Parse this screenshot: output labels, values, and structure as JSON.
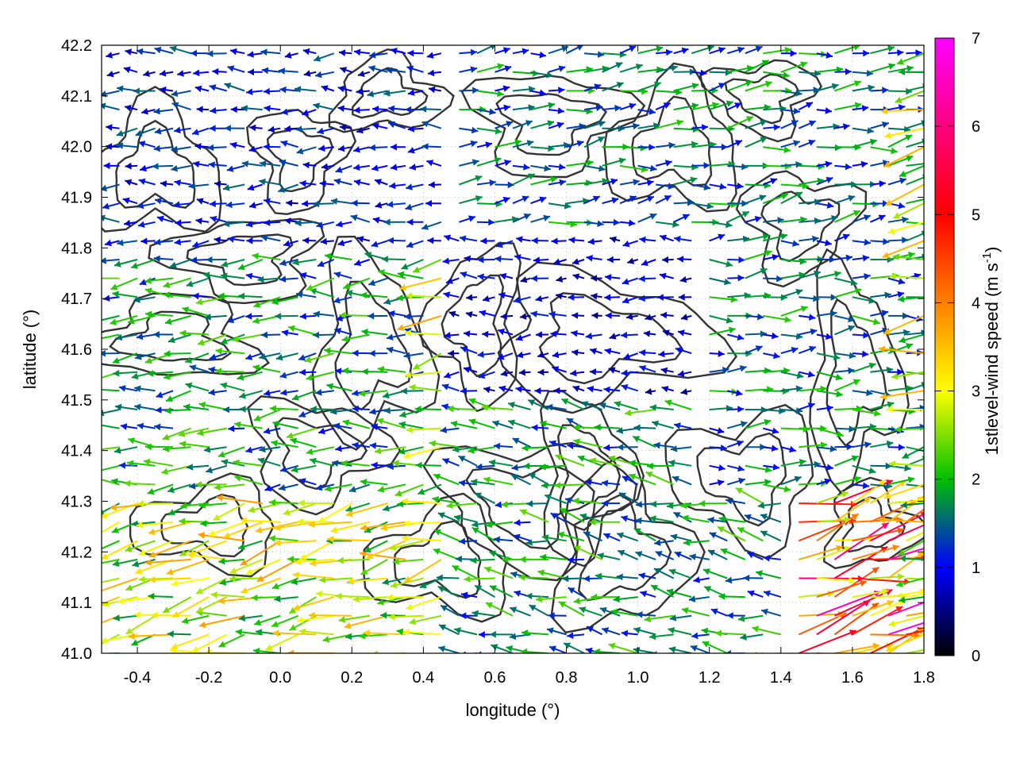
{
  "chart_data": {
    "type": "vector-field",
    "title": "",
    "xlabel": "longitude (°)",
    "ylabel": "latitude (°)",
    "colorbar_label_main": "1stlevel-wind speed (m s",
    "colorbar_label_exp": "-1",
    "colorbar_label_end": ")",
    "xlim": [
      -0.5,
      1.8
    ],
    "ylim": [
      41.0,
      42.2
    ],
    "clim": [
      0,
      7
    ],
    "x_ticks": [
      "-0.4",
      "-0.2",
      "0.0",
      "0.2",
      "0.4",
      "0.6",
      "0.8",
      "1.0",
      "1.2",
      "1.4",
      "1.6",
      "1.8"
    ],
    "y_ticks": [
      "41.0",
      "41.1",
      "41.2",
      "41.3",
      "41.4",
      "41.5",
      "41.6",
      "41.7",
      "41.8",
      "41.9",
      "42.0",
      "42.1",
      "42.2"
    ],
    "colorbar_ticks": [
      "0",
      "1",
      "2",
      "3",
      "4",
      "5",
      "6",
      "7"
    ],
    "grid": true,
    "colormap": [
      "#000000",
      "#0000ff",
      "#00c000",
      "#ffff00",
      "#ff8000",
      "#ff0000",
      "#ff00ff"
    ],
    "contour_color": "#333333",
    "wind_field": {
      "grid_lon_start": -0.5,
      "grid_lon_step": 0.05,
      "grid_lat_start": 41.0,
      "grid_lat_step": 0.037,
      "regions": [
        {
          "lon": [
            -0.5,
            0.15
          ],
          "lat": [
            41.0,
            41.3
          ],
          "u": -2.8,
          "v": -0.6,
          "speed": 3.2
        },
        {
          "lon": [
            -0.5,
            0.4
          ],
          "lat": [
            41.3,
            41.8
          ],
          "u": -2.0,
          "v": -0.1,
          "speed": 2.0
        },
        {
          "lon": [
            -0.5,
            0.45
          ],
          "lat": [
            41.8,
            42.2
          ],
          "u": -1.4,
          "v": 0.0,
          "speed": 1.3
        },
        {
          "lon": [
            0.45,
            1.2
          ],
          "lat": [
            41.5,
            41.85
          ],
          "u": -1.0,
          "v": 0.0,
          "speed": 1.0
        },
        {
          "lon": [
            0.45,
            1.8
          ],
          "lat": [
            41.85,
            42.2
          ],
          "u": 1.5,
          "v": 0.2,
          "speed": 1.8
        },
        {
          "lon": [
            1.2,
            1.8
          ],
          "lat": [
            41.3,
            41.85
          ],
          "u": 1.3,
          "v": 0.1,
          "speed": 1.8
        },
        {
          "lon": [
            0.45,
            1.45
          ],
          "lat": [
            41.0,
            41.5
          ],
          "u": -1.7,
          "v": 0.3,
          "speed": 2.0
        },
        {
          "lon": [
            1.45,
            1.8
          ],
          "lat": [
            41.0,
            41.3
          ],
          "u": 3.5,
          "v": 1.0,
          "speed": 5.0
        }
      ]
    }
  }
}
